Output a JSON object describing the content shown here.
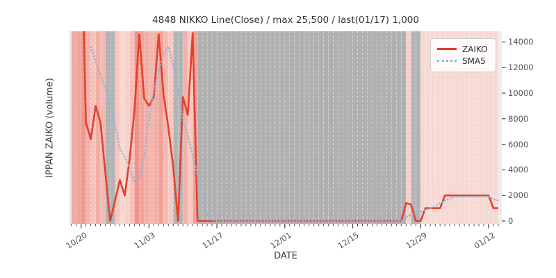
{
  "title": "4848 NIKKO Line(Close) / max 25,500 / last(01/17) 1,000",
  "chart_data": {
    "type": "line",
    "title": "4848 NIKKO Line(Close) / max 25,500 / last(01/17) 1,000",
    "xlabel": "DATE",
    "ylabel": "IPPAN ZAIKO (volume)",
    "x_start_date": "10/17",
    "x_tick_labels": [
      "10/20",
      "11/03",
      "11/17",
      "12/01",
      "12/15",
      "12/29",
      "01/12"
    ],
    "x_tick_days": [
      3,
      17,
      31,
      45,
      59,
      73,
      87
    ],
    "y_ticks": [
      0,
      2000,
      4000,
      6000,
      8000,
      10000,
      12000,
      14000
    ],
    "ylim": [
      -220,
      14840
    ],
    "grid": "vertical-daily-dashed-white",
    "legend_position": "upper-right",
    "legend": [
      {
        "name": "ZAIKO",
        "style": "solid",
        "color": "#e3402c"
      },
      {
        "name": "SMA5",
        "style": "dotted",
        "color": "#8fb6db"
      }
    ],
    "series": [
      {
        "name": "ZAIKO",
        "start_day": 3,
        "values": [
          25500,
          7700,
          6400,
          9000,
          7700,
          3800,
          0,
          1600,
          3200,
          2000,
          4800,
          8600,
          14600,
          9600,
          9000,
          9700,
          14600,
          9900,
          7300,
          4200,
          0,
          9700,
          8300,
          14700,
          0,
          0,
          0,
          0,
          0,
          0,
          0,
          0,
          0,
          0,
          0,
          0,
          0,
          0,
          0,
          0,
          0,
          0,
          0,
          0,
          0,
          0,
          0,
          0,
          0,
          0,
          0,
          0,
          0,
          0,
          0,
          0,
          0,
          0,
          0,
          0,
          0,
          0,
          0,
          0,
          0,
          0,
          0,
          1400,
          1300,
          0,
          0,
          1000,
          1000,
          1000,
          1000,
          2000,
          2000,
          2000,
          2000,
          2000,
          2000,
          2000,
          2000,
          2000,
          2000,
          1000,
          1000
        ]
      },
      {
        "name": "SMA5",
        "start_day": 5,
        "values": [
          13600,
          12500,
          11400,
          10400,
          9500,
          7500,
          5700,
          5000,
          4200,
          3000,
          3300,
          5100,
          8000,
          10200,
          11700,
          13100,
          13650,
          12100,
          10200,
          7900,
          6700,
          5100,
          3600,
          1900,
          500,
          100,
          0,
          0,
          0,
          0,
          0,
          0,
          0,
          0,
          0,
          0,
          0,
          0,
          0,
          0,
          0,
          0,
          0,
          0,
          0,
          0,
          0,
          0,
          0,
          0,
          0,
          0,
          0,
          0,
          0,
          0,
          0,
          0,
          0,
          0,
          0,
          0,
          0,
          0,
          0,
          300,
          500,
          600,
          700,
          850,
          1000,
          1150,
          1400,
          1600,
          1750,
          1900,
          1900,
          1900,
          1900,
          1900,
          1900,
          1900,
          1900,
          1700,
          1600
        ]
      }
    ],
    "background_bands": {
      "note": "one vertical band per calendar day starting 10/17; gray = no-trade days",
      "colors": [
        "#eee3e1",
        "#f2aba3",
        "#f0a59c",
        "#f0988f",
        "#f3b2aa",
        "#f6c3bc",
        "#f2ada5",
        "#f4b9b1",
        "#b1b3b5",
        "#b1b3b5",
        "#f6c5be",
        "#f9d8d2",
        "#f8d0ca",
        "#f5c1b9",
        "#ee9389",
        "#f1a49c",
        "#f2aea6",
        "#f3b5ad",
        "#f2aea6",
        "#f0a098",
        "#f4bab2",
        "#f6c8c1",
        "#b1b3b5",
        "#b1b3b5",
        "#f3b1a9",
        "#f7cac3",
        "#f0a29a",
        "#b0b0b0",
        "#b0b0b0",
        "#b0b0b0",
        "#b0b0b0",
        "#b0b0b0",
        "#b0b0b0",
        "#b0b0b0",
        "#b0b0b0",
        "#b0b0b0",
        "#b0b0b0",
        "#b0b0b0",
        "#b0b0b0",
        "#b0b0b0",
        "#b0b0b0",
        "#b0b0b0",
        "#b0b0b0",
        "#b0b0b0",
        "#b0b0b0",
        "#b0b0b0",
        "#b0b0b0",
        "#b0b0b0",
        "#b0b0b0",
        "#b0b0b0",
        "#b0b0b0",
        "#b0b0b0",
        "#b0b0b0",
        "#b0b0b0",
        "#b0b0b0",
        "#b0b0b0",
        "#b0b0b0",
        "#b0b0b0",
        "#b0b0b0",
        "#b0b0b0",
        "#b0b0b0",
        "#b0b0b0",
        "#b0b0b0",
        "#b0b0b0",
        "#b0b0b0",
        "#b0b0b0",
        "#b0b0b0",
        "#b0b0b0",
        "#b0b0b0",
        "#b0b0b0",
        "#f6d0c9",
        "#b1b3b5",
        "#b1b3b5",
        "#f7d9d3",
        "#f7d9d3",
        "#f7d9d3",
        "#f7d9d3",
        "#f7d9d3",
        "#f7d9d3",
        "#f7d9d3",
        "#f7d9d3",
        "#f7d9d3",
        "#f7d9d3",
        "#f7d9d3",
        "#f7d9d3",
        "#f7d9d3",
        "#f7d9d3",
        "#f7d9d3",
        "#f7d9d3",
        "#ededed"
      ]
    }
  },
  "colors": {
    "zaiko_line": "#e3402c",
    "sma5_line": "#8fb6db",
    "no_trade_band": "#b0b0b0",
    "grid_dash": "rgba(255,255,255,0.5)",
    "tick": "#4a4a4a"
  }
}
